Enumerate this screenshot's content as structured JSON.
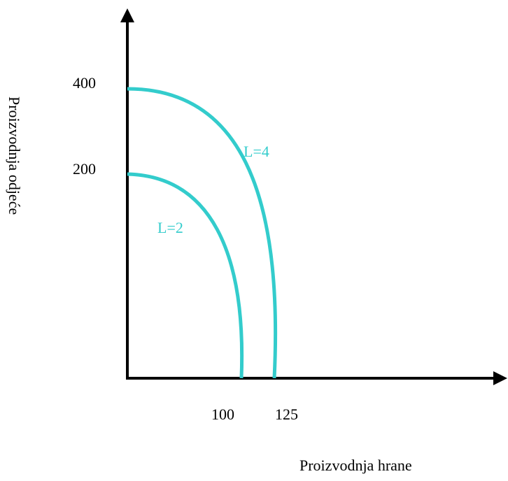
{
  "chart_data": {
    "type": "line",
    "title": "",
    "xlabel": "Proizvodnja hrane",
    "ylabel": "Proizvodnja odjeće",
    "x_ticks": [
      "100",
      "125"
    ],
    "y_ticks": [
      "400",
      "200"
    ],
    "grid": false,
    "legend": "none",
    "curve_color": "#33cccc",
    "series": [
      {
        "name": "L=2",
        "x": [
          0,
          50,
          80,
          95,
          100
        ],
        "y": [
          200,
          173,
          120,
          62,
          0
        ]
      },
      {
        "name": "L=4",
        "x": [
          0,
          62.5,
          100,
          118.75,
          125
        ],
        "y": [
          400,
          346,
          240,
          125,
          0
        ]
      }
    ]
  }
}
